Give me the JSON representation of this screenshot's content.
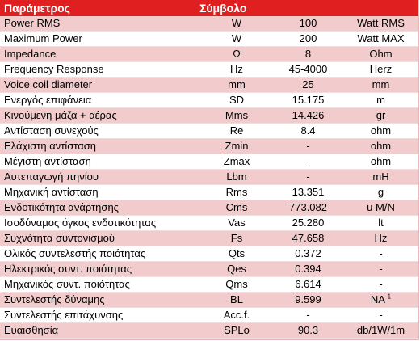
{
  "header": {
    "param_label": "Παράμετρος",
    "symbol_label": "Σύμβολο",
    "value_label": "",
    "unit_label": ""
  },
  "rows": [
    {
      "param": "Power RMS",
      "symbol": "W",
      "value": "100",
      "unit": "Watt RMS"
    },
    {
      "param": "Maximum Power",
      "symbol": "W",
      "value": "200",
      "unit": "Watt MAX"
    },
    {
      "param": "Impedance",
      "symbol": "Ω",
      "value": "8",
      "unit": "Ohm"
    },
    {
      "param": "Frequency Response",
      "symbol": "Hz",
      "value": "45-4000",
      "unit": "Herz"
    },
    {
      "param": "Voice coil diameter",
      "symbol": "mm",
      "value": "25",
      "unit": "mm"
    },
    {
      "param": "Ενεργός επιφάνεια",
      "symbol": "SD",
      "value": "15.175",
      "unit": "m"
    },
    {
      "param": "Κινούμενη μάζα + αέρας",
      "symbol": "Mms",
      "value": "14.426",
      "unit": "gr"
    },
    {
      "param": "Αντίσταση συνεχούς",
      "symbol": "Re",
      "value": "8.4",
      "unit": "ohm"
    },
    {
      "param": "Ελάχιστη αντίσταση",
      "symbol": "Zmin",
      "value": "-",
      "unit": "ohm"
    },
    {
      "param": "Μέγιστη αντίσταση",
      "symbol": "Zmax",
      "value": "-",
      "unit": "ohm"
    },
    {
      "param": "Αυτεπαγωγή πηνίου",
      "symbol": "Lbm",
      "value": "-",
      "unit": "mH"
    },
    {
      "param": "Μηχανική αντίσταση",
      "symbol": "Rms",
      "value": "13.351",
      "unit": "g"
    },
    {
      "param": "Ενδοτικότητα ανάρτησης",
      "symbol": "Cms",
      "value": "773.082",
      "unit": "u M/N"
    },
    {
      "param": "Ισοδύναμος όγκος ενδοτικότητας",
      "symbol": "Vas",
      "value": "25.280",
      "unit": "lt"
    },
    {
      "param": "Συχνότητα συντονισμού",
      "symbol": "Fs",
      "value": "47.658",
      "unit": "Hz"
    },
    {
      "param": "Ολικός συντελεστής ποιότητας",
      "symbol": "Qts",
      "value": "0.372",
      "unit": "-"
    },
    {
      "param": "Ηλεκτρικός συντ. ποιότητας",
      "symbol": "Qes",
      "value": "0.394",
      "unit": "-"
    },
    {
      "param": "Μηχανικός συντ. ποιότητας",
      "symbol": "Qms",
      "value": "6.614",
      "unit": "-"
    },
    {
      "param": "Συντελεστής δύναμης",
      "symbol": "BL",
      "value": "9.599",
      "unit": "NA",
      "unit_sup": "-1"
    },
    {
      "param": "Συντελεστής επιτάχυνσης",
      "symbol": "Acc.f.",
      "value": "-",
      "unit": "-"
    },
    {
      "param": "Ευαισθησία",
      "symbol": "SPLo",
      "value": "90.3",
      "unit": "db/1W/1m"
    }
  ]
}
